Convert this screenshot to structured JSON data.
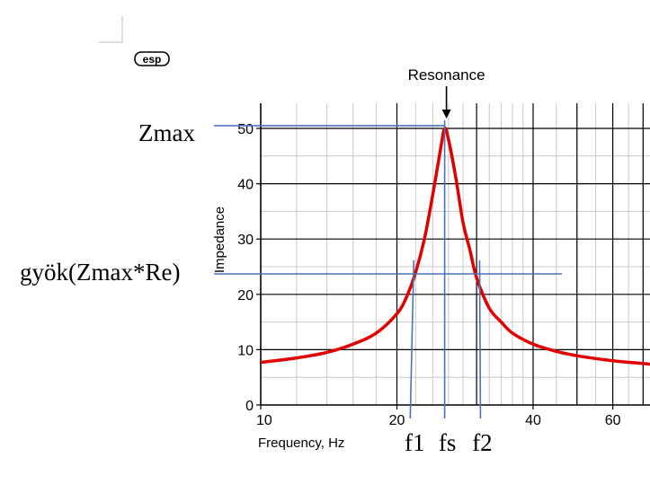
{
  "chart_data": {
    "type": "line",
    "xlabel": "Frequency, Hz",
    "ylabel": "Impedance",
    "x_scale": "log",
    "xlim": [
      10,
      75
    ],
    "ylim": [
      0,
      55
    ],
    "x_ticks": [
      10,
      20,
      40,
      60
    ],
    "x_tick_labels": [
      "10",
      "20",
      "40",
      "60"
    ],
    "y_ticks": [
      0,
      10,
      20,
      30,
      40,
      50
    ],
    "y_tick_labels": [
      "0",
      "10",
      "20",
      "30",
      "40",
      "50"
    ],
    "grid": true,
    "series": [
      {
        "color": "#e00000",
        "x": [
          10,
          12,
          14,
          16,
          18,
          20,
          21,
          22,
          23,
          24,
          25,
          25.5,
          26,
          27,
          28,
          29,
          30,
          32,
          34,
          36,
          40,
          45,
          50,
          60,
          70,
          75
        ],
        "y": [
          7.7,
          8.5,
          9.5,
          11,
          13,
          16.5,
          19.5,
          24,
          30,
          38,
          46.5,
          50,
          48,
          41,
          33,
          28,
          23,
          17.5,
          15,
          13,
          11,
          9.7,
          8.9,
          8,
          7.5,
          7.2
        ]
      }
    ],
    "annotations": {
      "resonance_label": "Resonance",
      "resonance_x": 25.5,
      "zmax_label": "Zmax",
      "zmax_value": 50.5,
      "geo_label": "gyök(Zmax*Re)",
      "geo_value": 23.7,
      "f1_label": "f1",
      "f1_x": 21.4,
      "fs_label": "fs",
      "fs_x": 25.5,
      "f2_label": "f2",
      "f2_x": 30.6
    }
  },
  "logo_text": "esp"
}
